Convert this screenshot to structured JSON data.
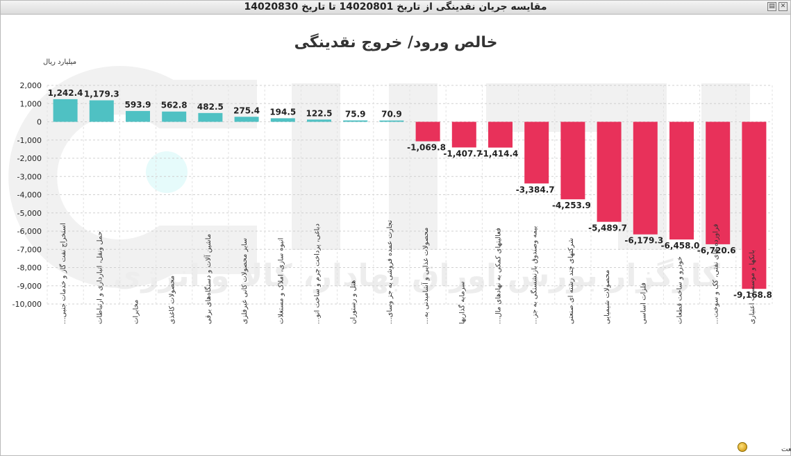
{
  "window": {
    "title": "مقایسه جریان نقدینگی از تاریخ 14020801 تا تاریخ 14020830"
  },
  "watermark": {
    "text": "کارگزار بورس اوراق بهادار، کالا و انرژی"
  },
  "colors": {
    "positive": "#4fc1c3",
    "negative": "#e8315a",
    "grid": "#d0d0d0",
    "text": "#222222"
  },
  "chart_data": {
    "type": "bar",
    "title": "خالص ورود/ خروج نقدینگی",
    "ylabel": "میلیارد ریال",
    "xlabel": "صنعت",
    "ylim": [
      -10000,
      2000
    ],
    "yticks": [
      2000,
      1000,
      0,
      -1000,
      -2000,
      -3000,
      -4000,
      -5000,
      -6000,
      -7000,
      -8000,
      -9000,
      -10000
    ],
    "ytick_labels": [
      "2,000",
      "1,000",
      "0",
      "-1,000",
      "-2,000",
      "-3,000",
      "-4,000",
      "-5,000",
      "-6,000",
      "-7,000",
      "-8,000",
      "-9,000",
      "-10,000"
    ],
    "grid": true,
    "categories": [
      "استخراج نفت گاز و خدمات جنبی...",
      "حمل ونقل، انبارداری و ارتباطات",
      "مخابرات",
      "محصولات کاغذی",
      "ماشین آلات و دستگاه‌های برقی",
      "سایر محصولات کانی غیرفلزی",
      "انبوه سازی، املاک و مستغلات",
      "دباغی، پرداخت چرم و ساخت انو...",
      "هتل و رستوران",
      "تجارت عمده فروشی به جز وسای...",
      "محصولات غذایی و آشامیدنی به...",
      "سرمایه گذاریها",
      "فعالیتهای کمکی به نهادهای مال...",
      "بیمه وصندوق بازنشستگی به جز...",
      "شرکتهای چند رشته ای صنعتی",
      "محصولات شیمیایی",
      "فلزات اساسی",
      "خودرو و ساخت قطعات",
      "فراورده های نفتی، کک و سوخت...",
      "بانکها و موسسات اعتباری"
    ],
    "values": [
      1242.4,
      1179.3,
      593.9,
      562.8,
      482.5,
      275.4,
      194.5,
      122.5,
      75.9,
      70.9,
      -1069.8,
      -1407.7,
      -1414.4,
      -3384.7,
      -4253.9,
      -5489.7,
      -6179.3,
      -6458.0,
      -6720.6,
      -9168.8
    ],
    "value_labels": [
      "1,242.4",
      "1,179.3",
      "593.9",
      "562.8",
      "482.5",
      "275.4",
      "194.5",
      "122.5",
      "75.9",
      "70.9",
      "-1,069.8",
      "-1,407.7",
      "-1,414.4",
      "-3,384.7",
      "-4,253.9",
      "-5,489.7",
      "-6,179.3",
      "-6,458.0",
      "-6,720.6",
      "-9,168.8"
    ]
  }
}
